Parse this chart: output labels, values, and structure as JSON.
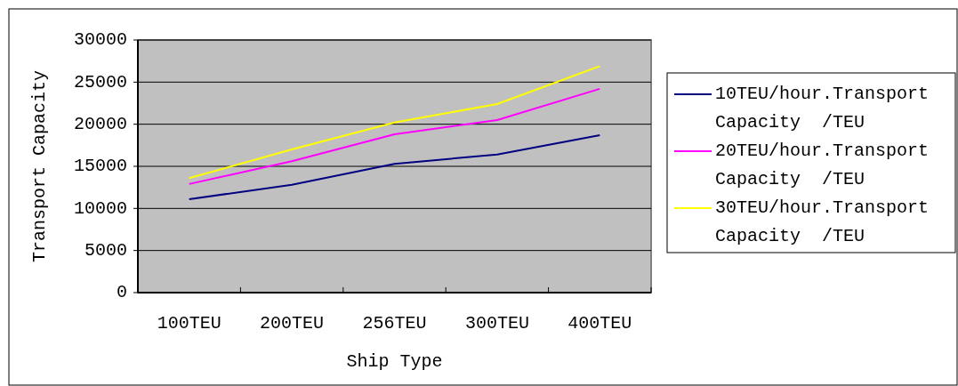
{
  "chart_data": {
    "type": "line",
    "xlabel": "Ship Type",
    "ylabel": "Transport Capacity",
    "categories": [
      "100TEU",
      "200TEU",
      "256TEU",
      "300TEU",
      "400TEU"
    ],
    "series": [
      {
        "name": "10TEU/hour.Transport Capacity  /TEU",
        "color": "#000080",
        "values": [
          11100,
          12800,
          15300,
          16400,
          18700
        ]
      },
      {
        "name": "20TEU/hour.Transport Capacity  /TEU",
        "color": "#ff00ff",
        "values": [
          12900,
          15600,
          18800,
          20500,
          24200
        ]
      },
      {
        "name": "30TEU/hour.Transport Capacity  /TEU",
        "color": "#ffff00",
        "values": [
          13600,
          17000,
          20200,
          22400,
          26900
        ]
      }
    ],
    "ylim": [
      0,
      30000
    ],
    "yticks": [
      0,
      5000,
      10000,
      15000,
      20000,
      25000,
      30000
    ],
    "grid": "y",
    "legend": "right",
    "marker": "none",
    "line_style": "solid"
  }
}
